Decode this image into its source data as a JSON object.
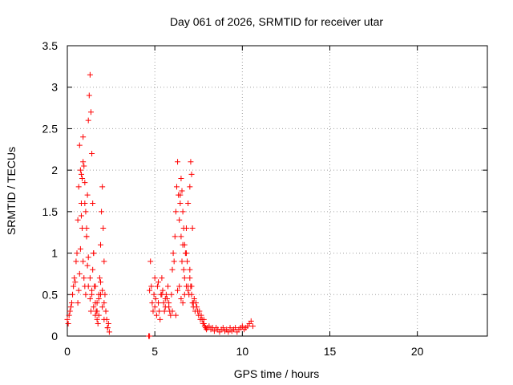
{
  "chart_data": {
    "type": "scatter",
    "title": "Day 061 of 2026, SRMTID for receiver utar",
    "xlabel": "GPS time / hours",
    "ylabel": "SRMTID / TECUs",
    "xlim": [
      0,
      24
    ],
    "ylim": [
      0,
      3.5
    ],
    "xticks": [
      0,
      5,
      10,
      15,
      20
    ],
    "xtick_labels": [
      "0",
      "5",
      "10",
      "15",
      "20"
    ],
    "yticks": [
      0,
      0.5,
      1,
      1.5,
      2,
      2.5,
      3,
      3.5
    ],
    "ytick_labels": [
      "0",
      "0.5",
      "1",
      "1.5",
      "2",
      "2.5",
      "3",
      "3.5"
    ],
    "grid": true,
    "marker": "+",
    "series": [
      {
        "name": "SRMTID",
        "color": "#ff0000",
        "x": [
          0.0,
          0.05,
          0.1,
          0.15,
          0.2,
          0.25,
          0.3,
          0.35,
          0.4,
          0.45,
          0.5,
          0.55,
          0.6,
          0.65,
          0.7,
          0.75,
          0.8,
          0.85,
          0.9,
          0.95,
          1.0,
          1.05,
          1.1,
          1.15,
          1.2,
          1.25,
          1.3,
          1.35,
          1.4,
          1.45,
          1.5,
          1.55,
          1.6,
          1.65,
          1.7,
          1.75,
          1.8,
          1.85,
          1.9,
          1.95,
          2.0,
          2.05,
          2.1,
          2.15,
          2.2,
          2.25,
          2.3,
          2.35,
          2.4,
          0.6,
          0.65,
          0.7,
          0.75,
          0.8,
          0.85,
          0.9,
          0.95,
          1.0,
          1.05,
          1.1,
          1.15,
          1.2,
          1.3,
          1.35,
          1.4,
          1.45,
          1.5,
          1.6,
          1.7,
          1.8,
          1.9,
          2.0,
          2.1,
          0.8,
          0.9,
          1.0,
          1.1,
          1.2,
          1.3,
          1.4,
          1.5,
          1.6,
          1.7,
          1.8,
          1.9,
          2.0,
          2.1,
          2.2,
          2.3,
          4.65,
          4.7,
          4.75,
          4.8,
          4.85,
          4.9,
          4.95,
          5.0,
          5.05,
          5.1,
          5.15,
          5.2,
          5.25,
          5.3,
          5.35,
          5.4,
          5.45,
          5.5,
          5.55,
          5.6,
          5.65,
          5.7,
          5.75,
          5.8,
          5.85,
          5.9,
          5.95,
          6.0,
          6.05,
          6.1,
          6.15,
          6.2,
          6.25,
          6.3,
          6.35,
          6.4,
          6.45,
          6.5,
          6.55,
          6.6,
          6.65,
          6.7,
          6.75,
          6.8,
          6.85,
          6.9,
          6.95,
          7.0,
          7.05,
          7.1,
          7.15,
          7.2,
          7.25,
          7.3,
          7.35,
          7.4,
          7.45,
          7.5,
          7.55,
          7.6,
          7.65,
          7.7,
          7.75,
          7.8,
          5.0,
          5.2,
          5.4,
          5.6,
          5.8,
          6.0,
          6.2,
          6.3,
          6.4,
          6.5,
          6.6,
          6.7,
          6.8,
          6.9,
          7.0,
          7.1,
          7.2,
          6.45,
          6.5,
          6.55,
          6.6,
          6.65,
          6.7,
          6.8,
          6.9,
          7.0,
          7.05,
          7.1,
          7.15,
          7.8,
          7.85,
          7.9,
          7.95,
          8.0,
          8.1,
          8.2,
          8.3,
          8.4,
          8.5,
          8.6,
          8.7,
          8.8,
          8.9,
          9.0,
          9.1,
          9.2,
          9.3,
          9.4,
          9.5,
          9.6,
          9.7,
          9.8,
          9.9,
          10.0,
          10.1,
          10.2,
          10.3,
          10.4,
          10.5,
          10.6,
          4.7
        ],
        "y": [
          0.2,
          0.15,
          0.25,
          0.3,
          0.35,
          0.4,
          0.5,
          0.6,
          0.7,
          0.65,
          0.9,
          1.0,
          1.4,
          1.8,
          2.3,
          2.0,
          1.6,
          1.3,
          0.9,
          0.7,
          0.6,
          0.5,
          1.2,
          1.7,
          2.6,
          2.9,
          3.15,
          2.7,
          2.2,
          1.6,
          1.0,
          0.6,
          0.4,
          0.3,
          0.2,
          0.15,
          0.5,
          0.7,
          1.1,
          1.5,
          1.8,
          1.3,
          0.9,
          0.5,
          0.3,
          0.2,
          0.1,
          0.15,
          0.05,
          0.4,
          0.55,
          0.75,
          1.05,
          1.45,
          1.9,
          2.4,
          2.05,
          1.85,
          1.5,
          1.2,
          0.85,
          0.6,
          0.45,
          0.3,
          0.55,
          0.8,
          1.0,
          0.6,
          0.4,
          0.25,
          0.5,
          0.35,
          0.2,
          1.95,
          2.1,
          1.6,
          1.3,
          0.95,
          0.7,
          0.5,
          0.35,
          0.25,
          0.3,
          0.45,
          0.65,
          0.55,
          0.4,
          0.3,
          0.1,
          0.0,
          0.55,
          0.9,
          0.6,
          0.4,
          0.3,
          0.5,
          0.35,
          0.45,
          0.25,
          0.6,
          0.4,
          0.3,
          0.2,
          0.5,
          0.7,
          0.55,
          0.4,
          0.3,
          0.35,
          0.5,
          0.45,
          0.6,
          0.4,
          0.3,
          0.25,
          0.5,
          0.8,
          1.0,
          0.9,
          1.2,
          1.5,
          1.8,
          2.1,
          1.7,
          1.4,
          1.6,
          1.2,
          0.9,
          1.1,
          0.8,
          0.7,
          1.0,
          1.3,
          0.9,
          0.6,
          0.5,
          0.7,
          0.6,
          0.5,
          0.4,
          0.35,
          0.45,
          0.3,
          0.4,
          0.35,
          0.3,
          0.25,
          0.3,
          0.2,
          0.25,
          0.2,
          0.15,
          0.2,
          0.7,
          0.65,
          0.5,
          0.45,
          0.35,
          0.3,
          0.25,
          0.55,
          0.6,
          0.45,
          0.4,
          0.5,
          0.6,
          0.55,
          0.8,
          0.6,
          0.4,
          1.7,
          1.9,
          1.75,
          1.5,
          1.3,
          1.1,
          1.0,
          1.6,
          1.8,
          2.1,
          1.95,
          1.3,
          0.15,
          0.12,
          0.1,
          0.08,
          0.1,
          0.12,
          0.08,
          0.1,
          0.06,
          0.1,
          0.08,
          0.05,
          0.08,
          0.1,
          0.06,
          0.08,
          0.05,
          0.1,
          0.06,
          0.08,
          0.1,
          0.05,
          0.08,
          0.1,
          0.12,
          0.08,
          0.1,
          0.12,
          0.15,
          0.18,
          0.12,
          0.0
        ]
      }
    ]
  }
}
